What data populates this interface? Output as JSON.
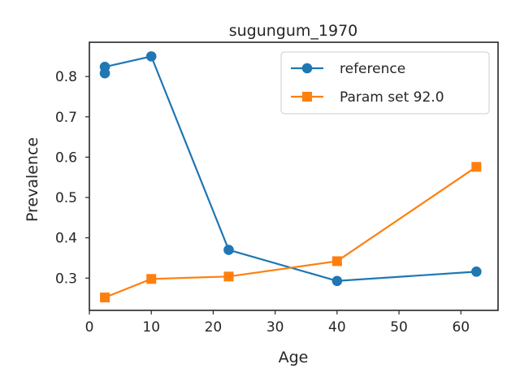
{
  "chart_data": {
    "type": "line",
    "title": "sugungum_1970",
    "xlabel": "Age",
    "ylabel": "Prevalence",
    "xlim": [
      0,
      66
    ],
    "ylim": [
      0.22,
      0.885
    ],
    "xticks": [
      0,
      10,
      20,
      30,
      40,
      50,
      60
    ],
    "yticks": [
      0.3,
      0.4,
      0.5,
      0.6,
      0.7,
      0.8
    ],
    "grid": false,
    "legend_position": "top-right",
    "series": [
      {
        "name": "reference",
        "color": "#1f77b4",
        "marker": "circle",
        "connected": [
          [
            2.5,
            0.824
          ],
          [
            10,
            0.85
          ],
          [
            22.5,
            0.37
          ],
          [
            40,
            0.293
          ],
          [
            62.5,
            0.316
          ]
        ],
        "extra_points": [
          [
            2.5,
            0.808
          ]
        ]
      },
      {
        "name": "Param set 92.0",
        "color": "#ff7f0e",
        "marker": "square",
        "connected": [
          [
            2.5,
            0.252
          ],
          [
            10,
            0.298
          ],
          [
            22.5,
            0.304
          ],
          [
            40,
            0.342
          ],
          [
            62.5,
            0.576
          ]
        ],
        "extra_points": []
      }
    ]
  }
}
